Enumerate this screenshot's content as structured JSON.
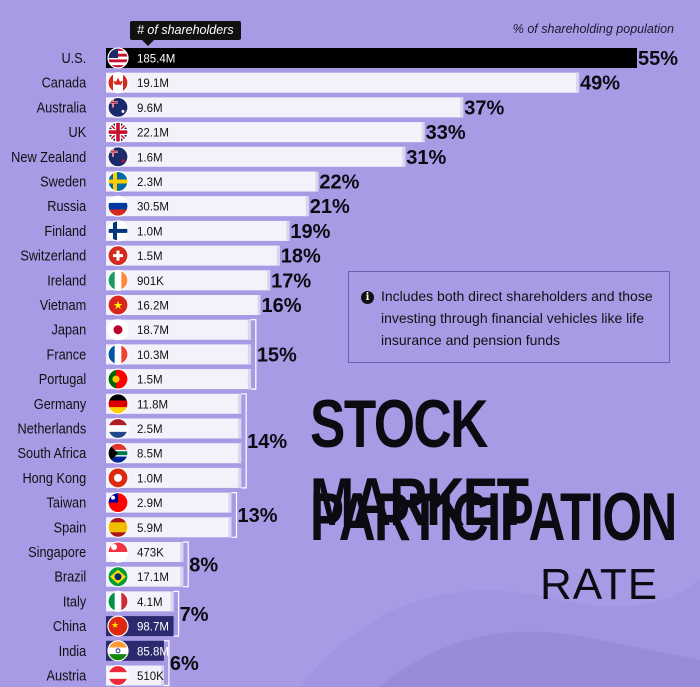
{
  "header": {
    "count_label": "# of shareholders",
    "pct_label": "% of shareholding population"
  },
  "note": {
    "icon": "info-icon",
    "text": "Includes both direct shareholders and those investing through financial vehicles like life insurance and pension funds"
  },
  "title": {
    "line1": "STOCK MARKET",
    "line2": "PARTICIPATION",
    "line3": "RATE"
  },
  "colors": {
    "background": "#a89be6",
    "bar": "#f3f2fa",
    "bar_highlight_us": "#000000",
    "bar_highlight_asia": "#2b2a6e",
    "text_dark": "#111111"
  },
  "chart_data": {
    "type": "bar",
    "orientation": "horizontal",
    "xlabel": "% of shareholding population",
    "categories": [
      "U.S.",
      "Canada",
      "Australia",
      "UK",
      "New Zealand",
      "Sweden",
      "Russia",
      "Finland",
      "Switzerland",
      "Ireland",
      "Vietnam",
      "Japan",
      "France",
      "Portugal",
      "Germany",
      "Netherlands",
      "South Africa",
      "Hong Kong",
      "Taiwan",
      "Spain",
      "Singapore",
      "Brazil",
      "Italy",
      "China",
      "India",
      "Austria"
    ],
    "values": [
      55,
      49,
      37,
      33,
      31,
      22,
      21,
      19,
      18,
      17,
      16,
      15,
      15,
      15,
      14,
      14,
      14,
      14,
      13,
      13,
      8,
      8,
      7,
      7,
      6,
      6
    ],
    "shareholders": [
      "185.4M",
      "19.1M",
      "9.6M",
      "22.1M",
      "1.6M",
      "2.3M",
      "30.5M",
      "1.0M",
      "1.5M",
      "901K",
      "16.2M",
      "18.7M",
      "10.3M",
      "1.5M",
      "11.8M",
      "2.5M",
      "8.5M",
      "1.0M",
      "2.9M",
      "5.9M",
      "473K",
      "17.1M",
      "4.1M",
      "98.7M",
      "85.8M",
      "510K"
    ],
    "flags": [
      "us-flag-icon",
      "canada-flag-icon",
      "australia-flag-icon",
      "uk-flag-icon",
      "new-zealand-flag-icon",
      "sweden-flag-icon",
      "russia-flag-icon",
      "finland-flag-icon",
      "switzerland-flag-icon",
      "ireland-flag-icon",
      "vietnam-flag-icon",
      "japan-flag-icon",
      "france-flag-icon",
      "portugal-flag-icon",
      "germany-flag-icon",
      "netherlands-flag-icon",
      "south-africa-flag-icon",
      "hong-kong-flag-icon",
      "taiwan-flag-icon",
      "spain-flag-icon",
      "singapore-flag-icon",
      "brazil-flag-icon",
      "italy-flag-icon",
      "china-flag-icon",
      "india-flag-icon",
      "austria-flag-icon"
    ],
    "highlight": [
      "us",
      "",
      "",
      "",
      "",
      "",
      "",
      "",
      "",
      "",
      "",
      "",
      "",
      "",
      "",
      "",
      "",
      "",
      "",
      "",
      "",
      "",
      "",
      "asia",
      "asia",
      ""
    ],
    "group_labels": [
      {
        "label": "55%",
        "rows": [
          0
        ]
      },
      {
        "label": "49%",
        "rows": [
          1
        ]
      },
      {
        "label": "37%",
        "rows": [
          2
        ]
      },
      {
        "label": "33%",
        "rows": [
          3
        ]
      },
      {
        "label": "31%",
        "rows": [
          4
        ]
      },
      {
        "label": "22%",
        "rows": [
          5
        ]
      },
      {
        "label": "21%",
        "rows": [
          6
        ]
      },
      {
        "label": "19%",
        "rows": [
          7
        ]
      },
      {
        "label": "18%",
        "rows": [
          8
        ]
      },
      {
        "label": "17%",
        "rows": [
          9
        ]
      },
      {
        "label": "16%",
        "rows": [
          10
        ]
      },
      {
        "label": "15%",
        "rows": [
          11,
          12,
          13
        ]
      },
      {
        "label": "14%",
        "rows": [
          14,
          15,
          16,
          17
        ]
      },
      {
        "label": "13%",
        "rows": [
          18,
          19
        ]
      },
      {
        "label": "8%",
        "rows": [
          20,
          21
        ]
      },
      {
        "label": "7%",
        "rows": [
          22,
          23
        ]
      },
      {
        "label": "6%",
        "rows": [
          24,
          25
        ]
      }
    ],
    "xlim": [
      0,
      55
    ]
  }
}
